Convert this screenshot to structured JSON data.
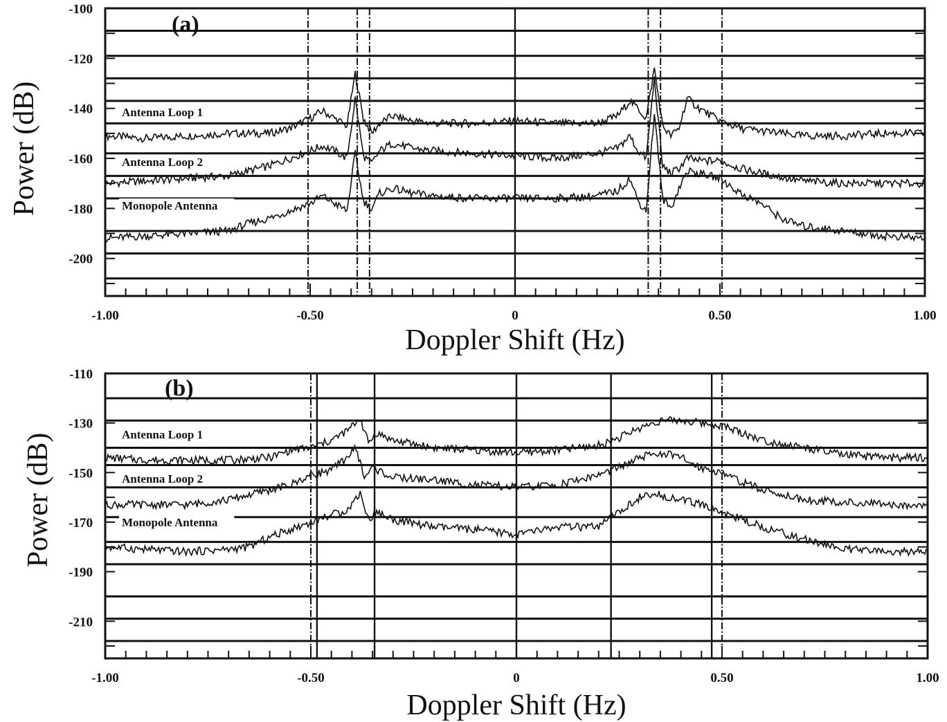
{
  "chart_data": [
    {
      "type": "line",
      "panel_label": "(a)",
      "xlabel": "Doppler Shift (Hz)",
      "ylabel": "Power (dB)",
      "xlim": [
        -1.0,
        1.0
      ],
      "ylim": [
        -215,
        -100
      ],
      "x_ticks": [
        "-1.00",
        "-0.50",
        "0",
        "0.50",
        "1.00"
      ],
      "y_ticks": [
        "-100",
        "-120",
        "-140",
        "-160",
        "-180",
        "-200"
      ],
      "horizontal_gridlines": [
        -109,
        -119,
        -128,
        -137,
        -146,
        -158,
        -167,
        -176,
        -189,
        -198,
        -208
      ],
      "vertical_lines": [
        {
          "x": -0.505,
          "style": "dashdot"
        },
        {
          "x": -0.385,
          "style": "dashdot"
        },
        {
          "x": -0.355,
          "style": "dashdot"
        },
        {
          "x": 0.0,
          "style": "solid"
        },
        {
          "x": 0.325,
          "style": "dashdot"
        },
        {
          "x": 0.355,
          "style": "dashdot"
        },
        {
          "x": 0.505,
          "style": "dashdot"
        }
      ],
      "series": [
        {
          "name": "Antenna Loop 1",
          "x": [
            -1.0,
            -0.9,
            -0.8,
            -0.7,
            -0.6,
            -0.55,
            -0.5,
            -0.47,
            -0.44,
            -0.41,
            -0.39,
            -0.37,
            -0.35,
            -0.33,
            -0.3,
            -0.25,
            -0.2,
            -0.1,
            0.0,
            0.1,
            0.2,
            0.25,
            0.28,
            0.3,
            0.32,
            0.34,
            0.36,
            0.38,
            0.4,
            0.42,
            0.45,
            0.5,
            0.55,
            0.6,
            0.7,
            0.8,
            0.9,
            1.0
          ],
          "values": [
            -151,
            -152,
            -151,
            -150,
            -150,
            -148,
            -144,
            -141,
            -144,
            -147,
            -126,
            -144,
            -150,
            -146,
            -143,
            -145,
            -146,
            -146,
            -145,
            -146,
            -146,
            -143,
            -137,
            -140,
            -144,
            -124,
            -147,
            -151,
            -148,
            -136,
            -140,
            -145,
            -148,
            -149,
            -151,
            -151,
            -150,
            -150
          ]
        },
        {
          "name": "Antenna Loop 2",
          "x": [
            -1.0,
            -0.9,
            -0.8,
            -0.7,
            -0.6,
            -0.55,
            -0.5,
            -0.47,
            -0.44,
            -0.41,
            -0.39,
            -0.37,
            -0.35,
            -0.33,
            -0.3,
            -0.25,
            -0.2,
            -0.1,
            0.0,
            0.1,
            0.2,
            0.25,
            0.28,
            0.3,
            0.32,
            0.34,
            0.36,
            0.38,
            0.4,
            0.42,
            0.45,
            0.5,
            0.55,
            0.6,
            0.7,
            0.8,
            0.9,
            1.0
          ],
          "values": [
            -170,
            -169,
            -168,
            -167,
            -163,
            -160,
            -157,
            -155,
            -157,
            -160,
            -136,
            -159,
            -162,
            -157,
            -154,
            -156,
            -157,
            -158,
            -159,
            -160,
            -158,
            -156,
            -151,
            -157,
            -160,
            -128,
            -163,
            -166,
            -164,
            -160,
            -161,
            -161,
            -164,
            -166,
            -169,
            -170,
            -170,
            -170
          ]
        },
        {
          "name": "Monopole Antenna",
          "x": [
            -1.0,
            -0.9,
            -0.8,
            -0.7,
            -0.65,
            -0.6,
            -0.55,
            -0.5,
            -0.47,
            -0.44,
            -0.41,
            -0.39,
            -0.37,
            -0.35,
            -0.33,
            -0.3,
            -0.25,
            -0.2,
            -0.1,
            0.0,
            0.1,
            0.2,
            0.25,
            0.28,
            0.3,
            0.32,
            0.34,
            0.36,
            0.38,
            0.4,
            0.42,
            0.45,
            0.5,
            0.55,
            0.6,
            0.65,
            0.7,
            0.8,
            0.9,
            1.0
          ],
          "values": [
            -192,
            -191,
            -190,
            -189,
            -186,
            -184,
            -181,
            -178,
            -175,
            -178,
            -181,
            -158,
            -177,
            -180,
            -174,
            -172,
            -174,
            -175,
            -176,
            -176,
            -176,
            -175,
            -173,
            -168,
            -177,
            -181,
            -142,
            -176,
            -180,
            -172,
            -165,
            -166,
            -168,
            -174,
            -178,
            -184,
            -187,
            -189,
            -191,
            -192
          ]
        }
      ]
    },
    {
      "type": "line",
      "panel_label": "(b)",
      "xlabel": "Doppler Shift (Hz)",
      "ylabel": "Power (dB)",
      "xlim": [
        -1.0,
        1.0
      ],
      "ylim": [
        -225,
        -110
      ],
      "x_ticks": [
        "-1.00",
        "-0.50",
        "0",
        "0.50",
        "1.00"
      ],
      "y_ticks": [
        "-110",
        "-130",
        "-150",
        "-170",
        "-190",
        "-210"
      ],
      "horizontal_gridlines": [
        -120,
        -129,
        -140,
        -147,
        -156,
        -168,
        -178,
        -187,
        -200,
        -209,
        -218
      ],
      "vertical_lines": [
        {
          "x": -0.5,
          "style": "dashdot"
        },
        {
          "x": -0.485,
          "style": "solid"
        },
        {
          "x": -0.345,
          "style": "solid"
        },
        {
          "x": 0.0,
          "style": "solid"
        },
        {
          "x": 0.23,
          "style": "solid"
        },
        {
          "x": 0.475,
          "style": "solid"
        },
        {
          "x": 0.5,
          "style": "dashdot"
        }
      ],
      "series": [
        {
          "name": "Antenna Loop 1",
          "x": [
            -1.0,
            -0.9,
            -0.8,
            -0.7,
            -0.6,
            -0.55,
            -0.5,
            -0.45,
            -0.41,
            -0.38,
            -0.36,
            -0.34,
            -0.3,
            -0.2,
            -0.1,
            0.0,
            0.1,
            0.2,
            0.25,
            0.3,
            0.35,
            0.4,
            0.45,
            0.5,
            0.55,
            0.6,
            0.7,
            0.8,
            0.9,
            1.0
          ],
          "values": [
            -144,
            -145,
            -145,
            -145,
            -144,
            -141,
            -140,
            -137,
            -133,
            -128,
            -138,
            -134,
            -137,
            -140,
            -141,
            -142,
            -141,
            -139,
            -136,
            -132,
            -129,
            -129,
            -130,
            -131,
            -134,
            -137,
            -140,
            -143,
            -144,
            -144
          ]
        },
        {
          "name": "Antenna Loop 2",
          "x": [
            -1.0,
            -0.9,
            -0.8,
            -0.7,
            -0.6,
            -0.55,
            -0.5,
            -0.45,
            -0.42,
            -0.39,
            -0.37,
            -0.35,
            -0.3,
            -0.2,
            -0.1,
            0.0,
            0.1,
            0.2,
            0.25,
            0.3,
            0.35,
            0.4,
            0.45,
            0.5,
            0.55,
            0.6,
            0.7,
            0.8,
            0.9,
            1.0
          ],
          "values": [
            -163,
            -163,
            -163,
            -161,
            -157,
            -155,
            -151,
            -149,
            -145,
            -140,
            -152,
            -148,
            -152,
            -153,
            -155,
            -156,
            -155,
            -151,
            -148,
            -144,
            -142,
            -144,
            -148,
            -150,
            -154,
            -157,
            -161,
            -162,
            -163,
            -163
          ]
        },
        {
          "name": "Monopole Antenna",
          "x": [
            -1.0,
            -0.9,
            -0.8,
            -0.7,
            -0.65,
            -0.6,
            -0.55,
            -0.5,
            -0.45,
            -0.41,
            -0.38,
            -0.36,
            -0.34,
            -0.3,
            -0.2,
            -0.1,
            0.0,
            0.1,
            0.2,
            0.25,
            0.3,
            0.35,
            0.4,
            0.45,
            0.5,
            0.55,
            0.6,
            0.7,
            0.8,
            0.9,
            1.0
          ],
          "values": [
            -180,
            -181,
            -182,
            -181,
            -180,
            -176,
            -173,
            -170,
            -167,
            -165,
            -158,
            -169,
            -166,
            -169,
            -172,
            -173,
            -175,
            -172,
            -172,
            -166,
            -160,
            -159,
            -161,
            -163,
            -166,
            -169,
            -172,
            -177,
            -181,
            -182,
            -182
          ]
        }
      ]
    }
  ]
}
